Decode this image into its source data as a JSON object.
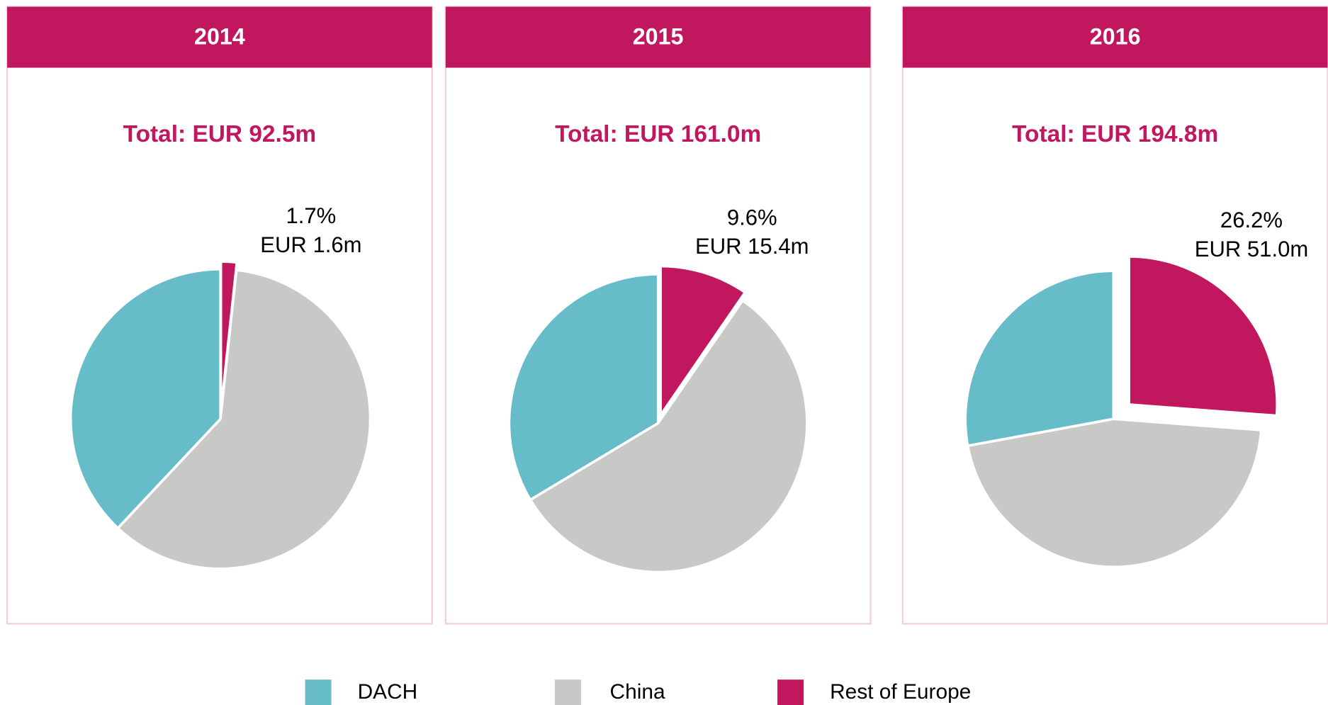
{
  "chart_data": [
    {
      "type": "pie",
      "title": "2014",
      "subtitle": "Total: EUR 92.5m",
      "categories": [
        "DACH",
        "China",
        "Rest of Europe"
      ],
      "values": [
        38.0,
        60.3,
        1.7
      ],
      "value_labels": [
        null,
        null,
        "1.7%"
      ],
      "amount_labels": [
        null,
        null,
        "EUR 1.6m"
      ],
      "colors": [
        "#67bcc9",
        "#c8c8c7",
        "#c0175f"
      ]
    },
    {
      "type": "pie",
      "title": "2015",
      "subtitle": "Total: EUR 161.0m",
      "categories": [
        "DACH",
        "China",
        "Rest of Europe"
      ],
      "values": [
        33.6,
        56.8,
        9.6
      ],
      "value_labels": [
        null,
        null,
        "9.6%"
      ],
      "amount_labels": [
        null,
        null,
        "EUR 15.4m"
      ],
      "colors": [
        "#67bcc9",
        "#c8c8c7",
        "#c0175f"
      ]
    },
    {
      "type": "pie",
      "title": "2016",
      "subtitle": "Total: EUR 194.8m",
      "categories": [
        "DACH",
        "China",
        "Rest of Europe"
      ],
      "values": [
        27.9,
        45.9,
        26.2
      ],
      "value_labels": [
        null,
        null,
        "26.2%"
      ],
      "amount_labels": [
        null,
        null,
        "EUR 51.0m"
      ],
      "colors": [
        "#67bcc9",
        "#c8c8c7",
        "#c0175f"
      ]
    }
  ]
}
